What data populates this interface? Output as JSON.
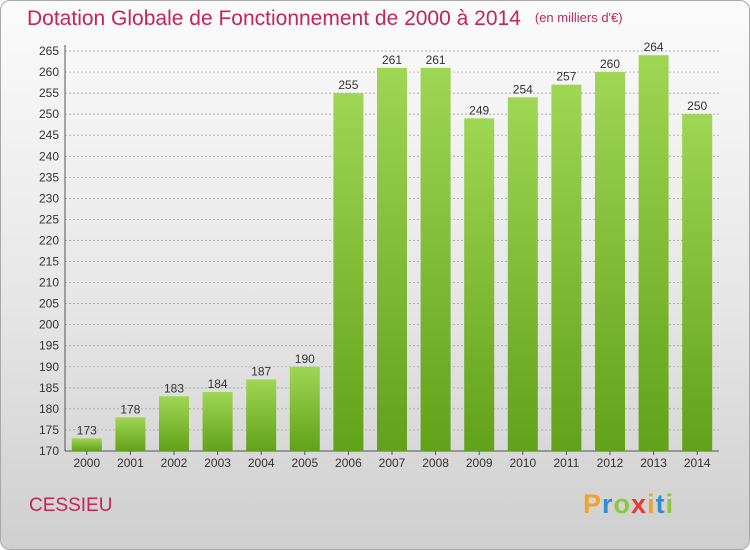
{
  "title": "Dotation Globale de Fonctionnement de 2000 à 2014",
  "unit_note": "(en milliers d'€)",
  "commune": "CESSIEU",
  "logo": {
    "letters": [
      "P",
      "r",
      "o",
      "x",
      "i",
      "t",
      "i"
    ],
    "colors": [
      "#f0a22a",
      "#2f8fd0",
      "#8dc63f",
      "#e53a2f",
      "#f0a22a",
      "#2f8fd0",
      "#8dc63f"
    ]
  },
  "colors": {
    "title": "#c4245a",
    "bar_light": "#9fd653",
    "bar_dark": "#62a11a",
    "grid": "#9a9a9a",
    "axis": "#555555"
  },
  "chart_data": {
    "type": "bar",
    "title": "Dotation Globale de Fonctionnement de 2000 à 2014",
    "subtitle": "(en milliers d'€)",
    "categories": [
      "2000",
      "2001",
      "2002",
      "2003",
      "2004",
      "2005",
      "2006",
      "2007",
      "2008",
      "2009",
      "2010",
      "2011",
      "2012",
      "2013",
      "2014"
    ],
    "values": [
      173,
      178,
      183,
      184,
      187,
      190,
      255,
      261,
      261,
      249,
      254,
      257,
      260,
      264,
      250
    ],
    "xlabel": "",
    "ylabel": "",
    "ylim": [
      170,
      265
    ],
    "yticks": [
      170,
      175,
      180,
      185,
      190,
      195,
      200,
      205,
      210,
      215,
      220,
      225,
      230,
      235,
      240,
      245,
      250,
      255,
      260,
      265
    ],
    "grid": true,
    "data_labels": true
  }
}
